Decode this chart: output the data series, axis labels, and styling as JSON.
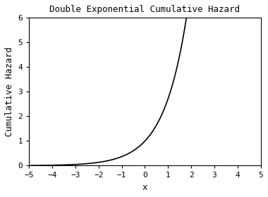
{
  "title": "Double Exponential Cumulative Hazard",
  "xlabel": "x",
  "ylabel": "Cumulative Hazard",
  "xlim": [
    -5,
    5
  ],
  "ylim": [
    0,
    6
  ],
  "xticks": [
    -5,
    -4,
    -3,
    -2,
    -1,
    0,
    1,
    2,
    3,
    4,
    5
  ],
  "yticks": [
    0,
    1,
    2,
    3,
    4,
    5,
    6
  ],
  "x_start": -5,
  "x_end": 5,
  "n_points": 1000,
  "line_color": "black",
  "line_width": 1.2,
  "background_color": "#ffffff",
  "title_fontsize": 9,
  "label_fontsize": 9,
  "tick_fontsize": 8
}
